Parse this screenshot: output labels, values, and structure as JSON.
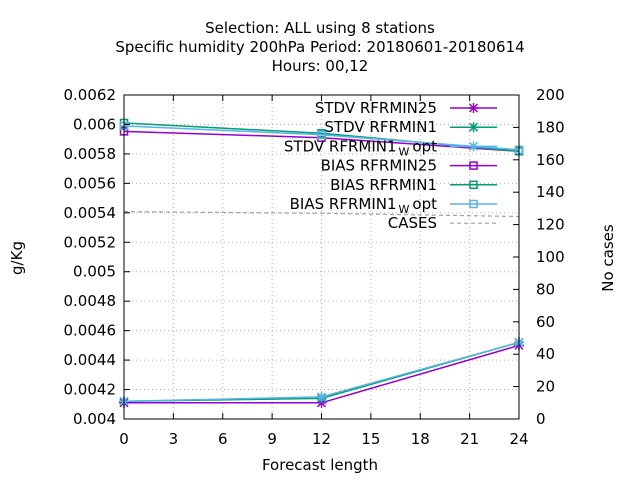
{
  "title": {
    "line1": "Selection: ALL using     8 stations",
    "line2": "Specific humidity 200hPa   Period: 20180601-20180614",
    "line3": "Hours:  00,12"
  },
  "colors": {
    "rfrmin25": "#9400d3",
    "rfrmin1": "#009e73",
    "rfrmin1_wopt": "#56b4e9",
    "cases": "#a0a0a0"
  },
  "chart_data": {
    "type": "line",
    "xlabel": "Forecast length",
    "ylabel": "g/Kg",
    "y2label": "No cases",
    "xlim": [
      0,
      24
    ],
    "ylim": [
      0.004,
      0.0062
    ],
    "y2lim": [
      0,
      200
    ],
    "xticks": [
      "0",
      "3",
      "6",
      "9",
      "12",
      "15",
      "18",
      "21",
      "24"
    ],
    "yticks": [
      "0.004",
      "0.0042",
      "0.0044",
      "0.0046",
      "0.0048",
      "0.005",
      "0.0052",
      "0.0054",
      "0.0056",
      "0.0058",
      "0.006",
      "0.0062"
    ],
    "y2ticks": [
      "0",
      "20",
      "40",
      "60",
      "80",
      "100",
      "120",
      "140",
      "160",
      "180",
      "200"
    ],
    "grid": true,
    "legend_position": "top-right",
    "x": [
      0,
      12,
      24
    ],
    "series": [
      {
        "name": "STDV RFRMIN25",
        "axis": "y",
        "marker": "x",
        "color_key": "rfrmin25",
        "values": [
          0.00411,
          0.00411,
          0.0045
        ]
      },
      {
        "name": "STDV RFRMIN1",
        "axis": "y",
        "marker": "x",
        "color_key": "rfrmin1",
        "values": [
          0.00412,
          0.00414,
          0.00452
        ]
      },
      {
        "name": "STDV RFRMIN1",
        "name_sub": "W",
        "name_suffix": "opt",
        "axis": "y",
        "marker": "x",
        "color_key": "rfrmin1_wopt",
        "values": [
          0.00412,
          0.00415,
          0.00452
        ]
      },
      {
        "name": "BIAS RFRMIN25",
        "axis": "y",
        "marker": "square",
        "color_key": "rfrmin25",
        "values": [
          0.005953,
          0.00591,
          0.005818
        ]
      },
      {
        "name": "BIAS RFRMIN1",
        "axis": "y",
        "marker": "square",
        "color_key": "rfrmin1",
        "values": [
          0.00601,
          0.00594,
          0.005818
        ]
      },
      {
        "name": "BIAS RFRMIN1",
        "name_sub": "W",
        "name_suffix": "opt",
        "axis": "y",
        "marker": "square",
        "color_key": "rfrmin1_wopt",
        "values": [
          0.00599,
          0.00593,
          0.005828
        ]
      },
      {
        "name": "CASES",
        "axis": "y2",
        "marker": "none",
        "dashed": true,
        "color_key": "cases",
        "values": [
          128,
          127,
          125
        ]
      }
    ]
  }
}
